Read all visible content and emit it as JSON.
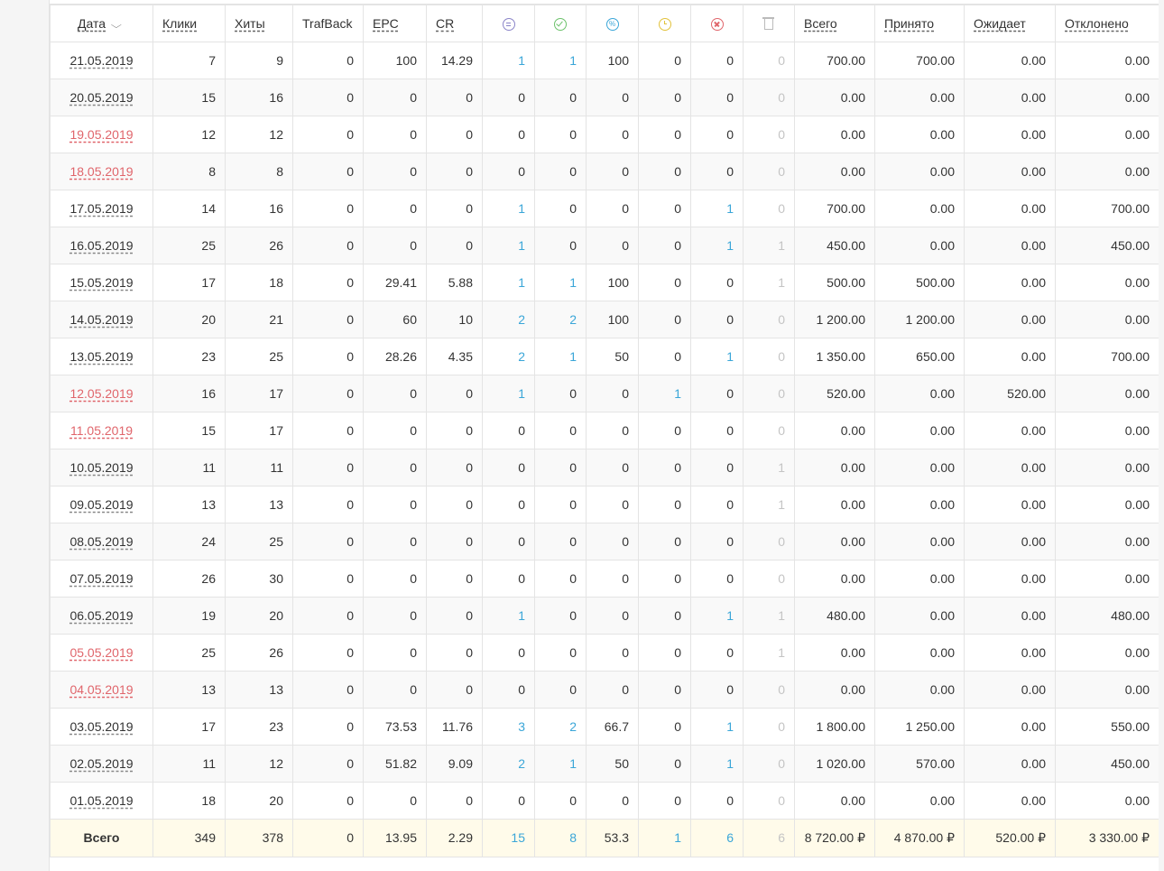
{
  "header": {
    "date": "Дата",
    "clicks": "Клики",
    "hits": "Хиты",
    "trafback": "TrafBack",
    "epc": "EPC",
    "cr": "CR",
    "icons": [
      "all-leads-icon",
      "approved-icon",
      "percent-icon",
      "pending-clock-icon",
      "rejected-icon",
      "trash-icon"
    ],
    "percent_glyph": "%",
    "total": "Всего",
    "accepted": "Принято",
    "pending": "Ожидает",
    "rejected": "Отклонено"
  },
  "colors": {
    "accent_blue": "#3aa6d8",
    "weekend_red": "#e0656b",
    "footer_bg": "#fffbea"
  },
  "rows": [
    {
      "date": "21.05.2019",
      "weekend": false,
      "clicks": "7",
      "hits": "9",
      "trafback": "0",
      "epc": "100",
      "cr": "14.29",
      "all": "1",
      "approved": "1",
      "percent": "100",
      "pending": "0",
      "rejected": "0",
      "trash": "0",
      "total": "700.00",
      "accepted": "700.00",
      "waiting": "0.00",
      "declined": "0.00"
    },
    {
      "date": "20.05.2019",
      "weekend": false,
      "clicks": "15",
      "hits": "16",
      "trafback": "0",
      "epc": "0",
      "cr": "0",
      "all": "0",
      "approved": "0",
      "percent": "0",
      "pending": "0",
      "rejected": "0",
      "trash": "0",
      "total": "0.00",
      "accepted": "0.00",
      "waiting": "0.00",
      "declined": "0.00"
    },
    {
      "date": "19.05.2019",
      "weekend": true,
      "clicks": "12",
      "hits": "12",
      "trafback": "0",
      "epc": "0",
      "cr": "0",
      "all": "0",
      "approved": "0",
      "percent": "0",
      "pending": "0",
      "rejected": "0",
      "trash": "0",
      "total": "0.00",
      "accepted": "0.00",
      "waiting": "0.00",
      "declined": "0.00"
    },
    {
      "date": "18.05.2019",
      "weekend": true,
      "clicks": "8",
      "hits": "8",
      "trafback": "0",
      "epc": "0",
      "cr": "0",
      "all": "0",
      "approved": "0",
      "percent": "0",
      "pending": "0",
      "rejected": "0",
      "trash": "0",
      "total": "0.00",
      "accepted": "0.00",
      "waiting": "0.00",
      "declined": "0.00"
    },
    {
      "date": "17.05.2019",
      "weekend": false,
      "clicks": "14",
      "hits": "16",
      "trafback": "0",
      "epc": "0",
      "cr": "0",
      "all": "1",
      "approved": "0",
      "percent": "0",
      "pending": "0",
      "rejected": "1",
      "trash": "0",
      "total": "700.00",
      "accepted": "0.00",
      "waiting": "0.00",
      "declined": "700.00"
    },
    {
      "date": "16.05.2019",
      "weekend": false,
      "clicks": "25",
      "hits": "26",
      "trafback": "0",
      "epc": "0",
      "cr": "0",
      "all": "1",
      "approved": "0",
      "percent": "0",
      "pending": "0",
      "rejected": "1",
      "trash": "1",
      "total": "450.00",
      "accepted": "0.00",
      "waiting": "0.00",
      "declined": "450.00"
    },
    {
      "date": "15.05.2019",
      "weekend": false,
      "clicks": "17",
      "hits": "18",
      "trafback": "0",
      "epc": "29.41",
      "cr": "5.88",
      "all": "1",
      "approved": "1",
      "percent": "100",
      "pending": "0",
      "rejected": "0",
      "trash": "1",
      "total": "500.00",
      "accepted": "500.00",
      "waiting": "0.00",
      "declined": "0.00"
    },
    {
      "date": "14.05.2019",
      "weekend": false,
      "clicks": "20",
      "hits": "21",
      "trafback": "0",
      "epc": "60",
      "cr": "10",
      "all": "2",
      "approved": "2",
      "percent": "100",
      "pending": "0",
      "rejected": "0",
      "trash": "0",
      "total": "1 200.00",
      "accepted": "1 200.00",
      "waiting": "0.00",
      "declined": "0.00"
    },
    {
      "date": "13.05.2019",
      "weekend": false,
      "clicks": "23",
      "hits": "25",
      "trafback": "0",
      "epc": "28.26",
      "cr": "4.35",
      "all": "2",
      "approved": "1",
      "percent": "50",
      "pending": "0",
      "rejected": "1",
      "trash": "0",
      "total": "1 350.00",
      "accepted": "650.00",
      "waiting": "0.00",
      "declined": "700.00"
    },
    {
      "date": "12.05.2019",
      "weekend": true,
      "clicks": "16",
      "hits": "17",
      "trafback": "0",
      "epc": "0",
      "cr": "0",
      "all": "1",
      "approved": "0",
      "percent": "0",
      "pending": "1",
      "rejected": "0",
      "trash": "0",
      "total": "520.00",
      "accepted": "0.00",
      "waiting": "520.00",
      "declined": "0.00"
    },
    {
      "date": "11.05.2019",
      "weekend": true,
      "clicks": "15",
      "hits": "17",
      "trafback": "0",
      "epc": "0",
      "cr": "0",
      "all": "0",
      "approved": "0",
      "percent": "0",
      "pending": "0",
      "rejected": "0",
      "trash": "0",
      "total": "0.00",
      "accepted": "0.00",
      "waiting": "0.00",
      "declined": "0.00"
    },
    {
      "date": "10.05.2019",
      "weekend": false,
      "clicks": "11",
      "hits": "11",
      "trafback": "0",
      "epc": "0",
      "cr": "0",
      "all": "0",
      "approved": "0",
      "percent": "0",
      "pending": "0",
      "rejected": "0",
      "trash": "1",
      "total": "0.00",
      "accepted": "0.00",
      "waiting": "0.00",
      "declined": "0.00"
    },
    {
      "date": "09.05.2019",
      "weekend": false,
      "clicks": "13",
      "hits": "13",
      "trafback": "0",
      "epc": "0",
      "cr": "0",
      "all": "0",
      "approved": "0",
      "percent": "0",
      "pending": "0",
      "rejected": "0",
      "trash": "1",
      "total": "0.00",
      "accepted": "0.00",
      "waiting": "0.00",
      "declined": "0.00"
    },
    {
      "date": "08.05.2019",
      "weekend": false,
      "clicks": "24",
      "hits": "25",
      "trafback": "0",
      "epc": "0",
      "cr": "0",
      "all": "0",
      "approved": "0",
      "percent": "0",
      "pending": "0",
      "rejected": "0",
      "trash": "0",
      "total": "0.00",
      "accepted": "0.00",
      "waiting": "0.00",
      "declined": "0.00"
    },
    {
      "date": "07.05.2019",
      "weekend": false,
      "clicks": "26",
      "hits": "30",
      "trafback": "0",
      "epc": "0",
      "cr": "0",
      "all": "0",
      "approved": "0",
      "percent": "0",
      "pending": "0",
      "rejected": "0",
      "trash": "0",
      "total": "0.00",
      "accepted": "0.00",
      "waiting": "0.00",
      "declined": "0.00"
    },
    {
      "date": "06.05.2019",
      "weekend": false,
      "clicks": "19",
      "hits": "20",
      "trafback": "0",
      "epc": "0",
      "cr": "0",
      "all": "1",
      "approved": "0",
      "percent": "0",
      "pending": "0",
      "rejected": "1",
      "trash": "1",
      "total": "480.00",
      "accepted": "0.00",
      "waiting": "0.00",
      "declined": "480.00"
    },
    {
      "date": "05.05.2019",
      "weekend": true,
      "clicks": "25",
      "hits": "26",
      "trafback": "0",
      "epc": "0",
      "cr": "0",
      "all": "0",
      "approved": "0",
      "percent": "0",
      "pending": "0",
      "rejected": "0",
      "trash": "1",
      "total": "0.00",
      "accepted": "0.00",
      "waiting": "0.00",
      "declined": "0.00"
    },
    {
      "date": "04.05.2019",
      "weekend": true,
      "clicks": "13",
      "hits": "13",
      "trafback": "0",
      "epc": "0",
      "cr": "0",
      "all": "0",
      "approved": "0",
      "percent": "0",
      "pending": "0",
      "rejected": "0",
      "trash": "0",
      "total": "0.00",
      "accepted": "0.00",
      "waiting": "0.00",
      "declined": "0.00"
    },
    {
      "date": "03.05.2019",
      "weekend": false,
      "clicks": "17",
      "hits": "23",
      "trafback": "0",
      "epc": "73.53",
      "cr": "11.76",
      "all": "3",
      "approved": "2",
      "percent": "66.7",
      "pending": "0",
      "rejected": "1",
      "trash": "0",
      "total": "1 800.00",
      "accepted": "1 250.00",
      "waiting": "0.00",
      "declined": "550.00"
    },
    {
      "date": "02.05.2019",
      "weekend": false,
      "clicks": "11",
      "hits": "12",
      "trafback": "0",
      "epc": "51.82",
      "cr": "9.09",
      "all": "2",
      "approved": "1",
      "percent": "50",
      "pending": "0",
      "rejected": "1",
      "trash": "0",
      "total": "1 020.00",
      "accepted": "570.00",
      "waiting": "0.00",
      "declined": "450.00"
    },
    {
      "date": "01.05.2019",
      "weekend": false,
      "clicks": "18",
      "hits": "20",
      "trafback": "0",
      "epc": "0",
      "cr": "0",
      "all": "0",
      "approved": "0",
      "percent": "0",
      "pending": "0",
      "rejected": "0",
      "trash": "0",
      "total": "0.00",
      "accepted": "0.00",
      "waiting": "0.00",
      "declined": "0.00"
    }
  ],
  "totals": {
    "label": "Всего",
    "clicks": "349",
    "hits": "378",
    "trafback": "0",
    "epc": "13.95",
    "cr": "2.29",
    "all": "15",
    "approved": "8",
    "percent": "53.3",
    "pending": "1",
    "rejected": "6",
    "trash": "6",
    "total": "8 720.00 ₽",
    "accepted": "4 870.00 ₽",
    "waiting": "520.00 ₽",
    "declined": "3 330.00 ₽"
  }
}
